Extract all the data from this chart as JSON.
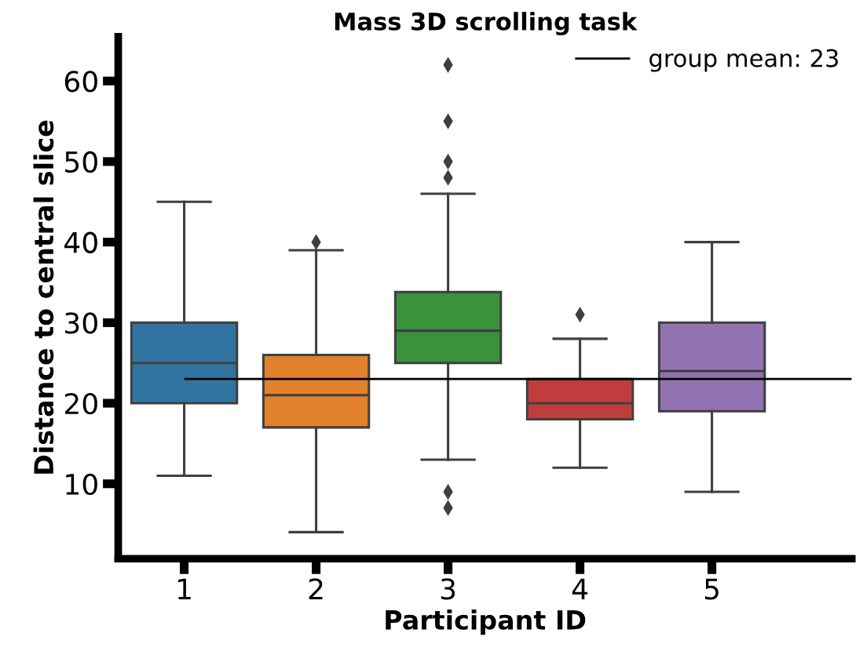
{
  "chart_data": {
    "type": "box",
    "title": "Mass 3D scrolling task",
    "xlabel": "Participant ID",
    "ylabel": "Distance to central slice",
    "categories": [
      "1",
      "2",
      "3",
      "4",
      "5"
    ],
    "colors": [
      "#3274a1",
      "#e1812c",
      "#3a923a",
      "#c03d3e",
      "#9372b2"
    ],
    "boxes": [
      {
        "low": 11,
        "q1": 20,
        "median": 25,
        "q3": 30,
        "high": 45
      },
      {
        "low": 4,
        "q1": 17,
        "median": 21,
        "q3": 26,
        "high": 39,
        "outliers": [
          40
        ]
      },
      {
        "low": 13,
        "q1": 25,
        "median": 29,
        "q3": 33.8,
        "high": 46,
        "outliers": [
          48,
          50,
          55,
          62,
          9,
          7
        ]
      },
      {
        "low": 12,
        "q1": 18,
        "median": 20,
        "q3": 23,
        "high": 28,
        "outliers": [
          31
        ]
      },
      {
        "low": 9,
        "q1": 19,
        "median": 24,
        "q3": 30,
        "high": 40
      }
    ],
    "ylim": [
      0.7,
      65.5
    ],
    "yticks": [
      10,
      20,
      30,
      40,
      50,
      60
    ],
    "ref_lines": [
      {
        "axis": "y",
        "value": 23,
        "label": "group mean: 23",
        "color": "#000000"
      }
    ],
    "legend": "top right",
    "grid": false,
    "marker": "diamond"
  }
}
